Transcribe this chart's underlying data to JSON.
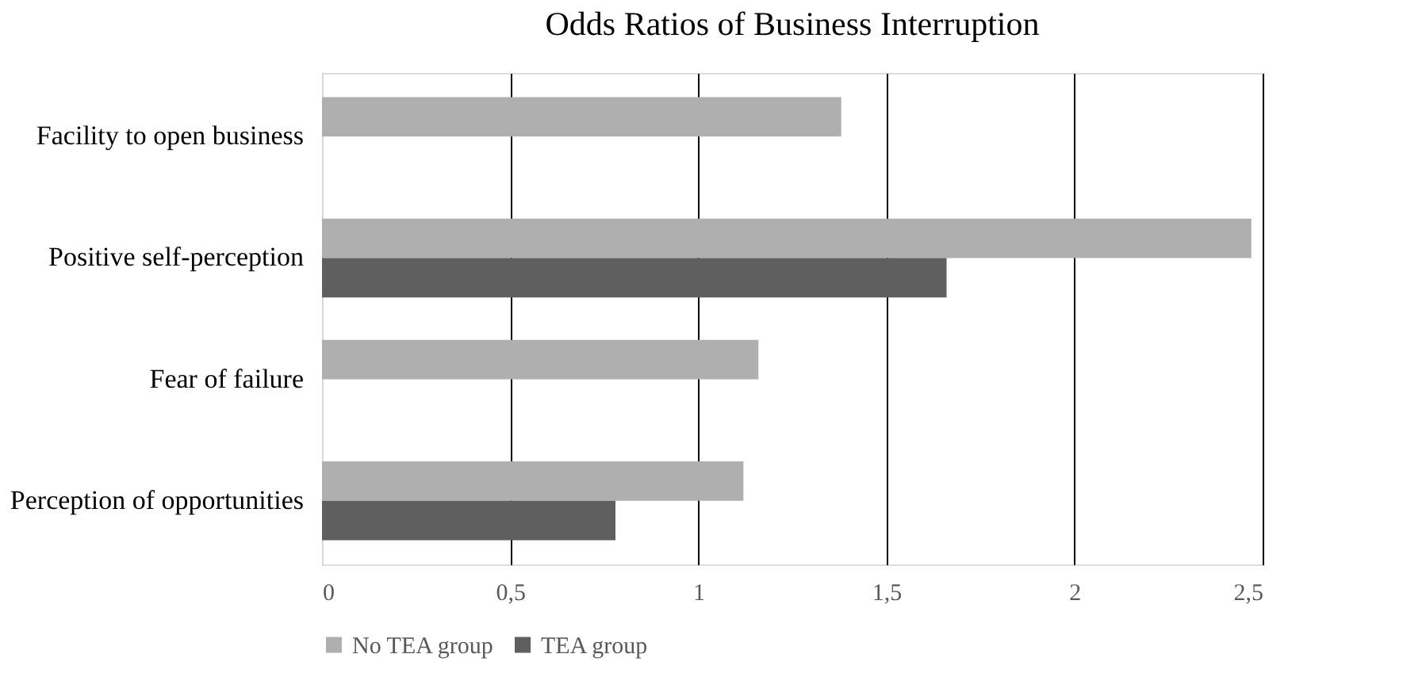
{
  "chart_data": {
    "type": "bar",
    "orientation": "horizontal",
    "title": "Odds Ratios of Business Interruption",
    "categories": [
      "Facility to open business",
      "Positive self-perception",
      "Fear of failure",
      "Perception of opportunities"
    ],
    "series": [
      {
        "name": "No TEA group",
        "color": "#afafaf",
        "values": [
          1.38,
          2.47,
          1.16,
          1.12
        ]
      },
      {
        "name": "TEA group",
        "color": "#5f5f5f",
        "values": [
          null,
          1.66,
          null,
          0.78
        ]
      }
    ],
    "xlim": [
      0,
      2.5
    ],
    "xticks": [
      0,
      {
        "value": 0.5,
        "label": "0,5"
      },
      1,
      {
        "value": 1.5,
        "label": "1,5"
      },
      2,
      {
        "value": 2.5,
        "label": "2,5"
      }
    ],
    "grid": "x",
    "legend": "bottom"
  }
}
